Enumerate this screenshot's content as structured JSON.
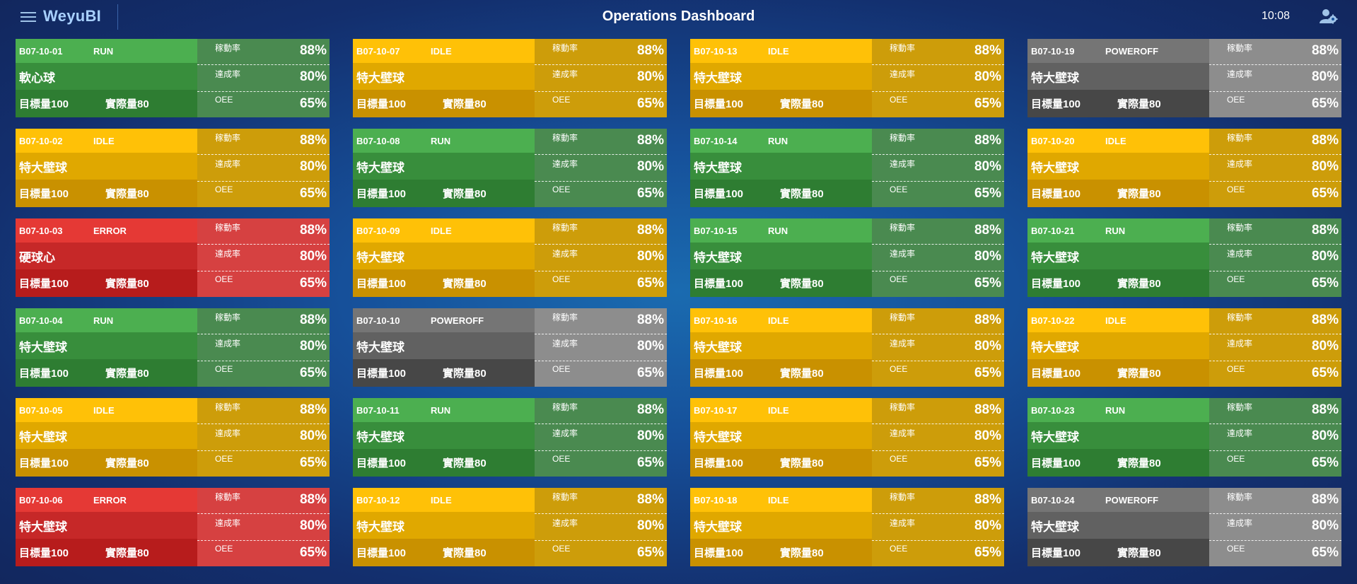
{
  "header": {
    "brand": "WeyuBI",
    "title": "Operations Dashboard",
    "time": "10:08"
  },
  "labels": {
    "uptime": "稼動率",
    "achievement": "達成率",
    "oee": "OEE"
  },
  "status_colors": {
    "RUN": "#4caf50",
    "IDLE": "#ffc107",
    "ERROR": "#e53935",
    "POWEROFF": "#757575"
  },
  "machines": [
    {
      "id": "B07-10-01",
      "status": "RUN",
      "product": "軟心球",
      "target": "目標量100",
      "actual": "實際量80",
      "uptime": "88%",
      "achievement": "80%",
      "oee": "65%"
    },
    {
      "id": "B07-10-07",
      "status": "IDLE",
      "product": "特大壁球",
      "target": "目標量100",
      "actual": "實際量80",
      "uptime": "88%",
      "achievement": "80%",
      "oee": "65%"
    },
    {
      "id": "B07-10-13",
      "status": "IDLE",
      "product": "特大壁球",
      "target": "目標量100",
      "actual": "實際量80",
      "uptime": "88%",
      "achievement": "80%",
      "oee": "65%"
    },
    {
      "id": "B07-10-19",
      "status": "POWEROFF",
      "product": "特大壁球",
      "target": "目標量100",
      "actual": "實際量80",
      "uptime": "88%",
      "achievement": "80%",
      "oee": "65%"
    },
    {
      "id": "B07-10-02",
      "status": "IDLE",
      "product": "特大壁球",
      "target": "目標量100",
      "actual": "實際量80",
      "uptime": "88%",
      "achievement": "80%",
      "oee": "65%"
    },
    {
      "id": "B07-10-08",
      "status": "RUN",
      "product": "特大壁球",
      "target": "目標量100",
      "actual": "實際量80",
      "uptime": "88%",
      "achievement": "80%",
      "oee": "65%"
    },
    {
      "id": "B07-10-14",
      "status": "RUN",
      "product": "特大壁球",
      "target": "目標量100",
      "actual": "實際量80",
      "uptime": "88%",
      "achievement": "80%",
      "oee": "65%"
    },
    {
      "id": "B07-10-20",
      "status": "IDLE",
      "product": "特大壁球",
      "target": "目標量100",
      "actual": "實際量80",
      "uptime": "88%",
      "achievement": "80%",
      "oee": "65%"
    },
    {
      "id": "B07-10-03",
      "status": "ERROR",
      "product": "硬球心",
      "target": "目標量100",
      "actual": "實際量80",
      "uptime": "88%",
      "achievement": "80%",
      "oee": "65%"
    },
    {
      "id": "B07-10-09",
      "status": "IDLE",
      "product": "特大壁球",
      "target": "目標量100",
      "actual": "實際量80",
      "uptime": "88%",
      "achievement": "80%",
      "oee": "65%"
    },
    {
      "id": "B07-10-15",
      "status": "RUN",
      "product": "特大壁球",
      "target": "目標量100",
      "actual": "實際量80",
      "uptime": "88%",
      "achievement": "80%",
      "oee": "65%"
    },
    {
      "id": "B07-10-21",
      "status": "RUN",
      "product": "特大壁球",
      "target": "目標量100",
      "actual": "實際量80",
      "uptime": "88%",
      "achievement": "80%",
      "oee": "65%"
    },
    {
      "id": "B07-10-04",
      "status": "RUN",
      "product": "特大壁球",
      "target": "目標量100",
      "actual": "實際量80",
      "uptime": "88%",
      "achievement": "80%",
      "oee": "65%"
    },
    {
      "id": "B07-10-10",
      "status": "POWEROFF",
      "product": "特大壁球",
      "target": "目標量100",
      "actual": "實際量80",
      "uptime": "88%",
      "achievement": "80%",
      "oee": "65%"
    },
    {
      "id": "B07-10-16",
      "status": "IDLE",
      "product": "特大壁球",
      "target": "目標量100",
      "actual": "實際量80",
      "uptime": "88%",
      "achievement": "80%",
      "oee": "65%"
    },
    {
      "id": "B07-10-22",
      "status": "IDLE",
      "product": "特大壁球",
      "target": "目標量100",
      "actual": "實際量80",
      "uptime": "88%",
      "achievement": "80%",
      "oee": "65%"
    },
    {
      "id": "B07-10-05",
      "status": "IDLE",
      "product": "特大壁球",
      "target": "目標量100",
      "actual": "實際量80",
      "uptime": "88%",
      "achievement": "80%",
      "oee": "65%"
    },
    {
      "id": "B07-10-11",
      "status": "RUN",
      "product": "特大壁球",
      "target": "目標量100",
      "actual": "實際量80",
      "uptime": "88%",
      "achievement": "80%",
      "oee": "65%"
    },
    {
      "id": "B07-10-17",
      "status": "IDLE",
      "product": "特大壁球",
      "target": "目標量100",
      "actual": "實際量80",
      "uptime": "88%",
      "achievement": "80%",
      "oee": "65%"
    },
    {
      "id": "B07-10-23",
      "status": "RUN",
      "product": "特大壁球",
      "target": "目標量100",
      "actual": "實際量80",
      "uptime": "88%",
      "achievement": "80%",
      "oee": "65%"
    },
    {
      "id": "B07-10-06",
      "status": "ERROR",
      "product": "特大壁球",
      "target": "目標量100",
      "actual": "實際量80",
      "uptime": "88%",
      "achievement": "80%",
      "oee": "65%"
    },
    {
      "id": "B07-10-12",
      "status": "IDLE",
      "product": "特大壁球",
      "target": "目標量100",
      "actual": "實際量80",
      "uptime": "88%",
      "achievement": "80%",
      "oee": "65%"
    },
    {
      "id": "B07-10-18",
      "status": "IDLE",
      "product": "特大壁球",
      "target": "目標量100",
      "actual": "實際量80",
      "uptime": "88%",
      "achievement": "80%",
      "oee": "65%"
    },
    {
      "id": "B07-10-24",
      "status": "POWEROFF",
      "product": "特大壁球",
      "target": "目標量100",
      "actual": "實際量80",
      "uptime": "88%",
      "achievement": "80%",
      "oee": "65%"
    }
  ]
}
